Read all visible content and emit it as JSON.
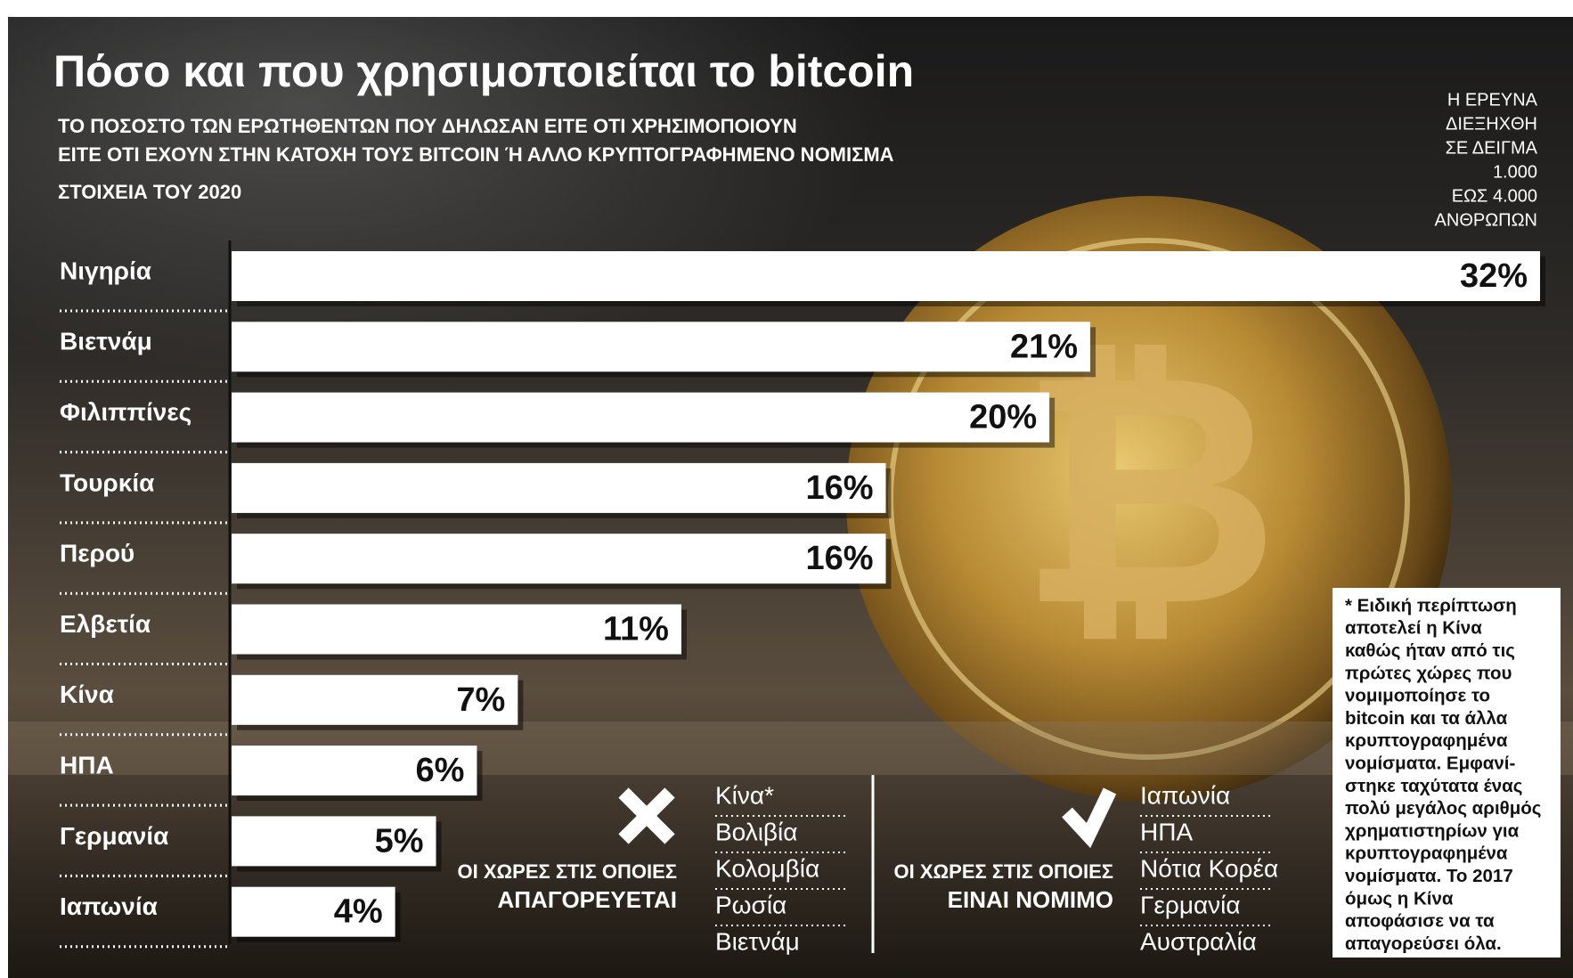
{
  "chart_data": {
    "type": "bar",
    "orientation": "horizontal",
    "title": "Πόσο και που χρησιμοποιείται το bitcoin",
    "subtitle": [
      "ΤΟ ΠΟΣΟΣΤΟ ΤΩΝ ΕΡΩΤΗΘΕΝΤΩΝ ΠΟΥ ΔΗΛΩΣΑΝ ΕΙΤΕ ΟΤΙ ΧΡΗΣΙΜΟΠΟΙΟΥΝ",
      "ΕΙΤΕ ΟΤΙ ΕΧΟΥΝ ΣΤΗΝ ΚΑΤΟΧΗ ΤΟΥΣ BITCOIN Ή ΑΛΛΟ ΚΡΥΠΤΟΓΡΑΦΗΜΕΝΟ ΝΟΜΙΣΜΑ"
    ],
    "source_year": "ΣΤΟΙΧΕΙΑ ΤΟΥ 2020",
    "survey_note": [
      "Η ΕΡΕΥΝΑ",
      "ΔΙΕΞΗΧΘΗ",
      "ΣΕ ΔΕΙΓΜΑ",
      "1.000",
      "ΕΩΣ 4.000",
      "ΑΝΘΡΩΠΩΝ"
    ],
    "categories": [
      "Νιγηρία",
      "Βιετνάμ",
      "Φιλιππίνες",
      "Τουρκία",
      "Περού",
      "Ελβετία",
      "Κίνα",
      "ΗΠΑ",
      "Γερμανία",
      "Ιαπωνία"
    ],
    "values": [
      32,
      21,
      20,
      16,
      16,
      11,
      7,
      6,
      5,
      4
    ],
    "value_labels": [
      "32%",
      "21%",
      "20%",
      "16%",
      "16%",
      "11%",
      "7%",
      "6%",
      "5%",
      "4%"
    ],
    "color": "#ffffff",
    "xlim": [
      0,
      32
    ],
    "banned": {
      "label": [
        "ΟΙ ΧΩΡΕΣ ΣΤΙΣ ΟΠΟΙΕΣ",
        "ΑΠΑΓΟΡΕΥΕΤΑΙ"
      ],
      "countries": [
        "Κίνα*",
        "Βολιβία",
        "Κολομβία",
        "Ρωσία",
        "Βιετνάμ"
      ]
    },
    "legal": {
      "label": [
        "ΟΙ ΧΩΡΕΣ ΣΤΙΣ ΟΠΟΙΕΣ",
        "ΕΙΝΑΙ ΝΟΜΙΜΟ"
      ],
      "countries": [
        "Ιαπωνία",
        "ΗΠΑ",
        "Νότια Κορέα",
        "Γερμανία",
        "Αυστραλία"
      ]
    },
    "footnote": [
      "* Ειδική περίπτωση",
      "αποτελεί η Κίνα",
      "καθώς ήταν από τις",
      "πρώτες χώρες που",
      "νομιμοποίησε το",
      "bitcoin και τα άλλα",
      "κρυπτογραφημένα",
      "νομίσματα. Εμφανί-",
      "στηκε ταχύτατα ένας",
      "πολύ μεγάλος αριθμός",
      "χρηματιστηρίων για",
      "κρυπτογραφημένα",
      "νομίσματα. Το 2017",
      "όμως η Κίνα",
      "αποφάσισε να τα",
      "απαγορεύσει όλα."
    ]
  }
}
